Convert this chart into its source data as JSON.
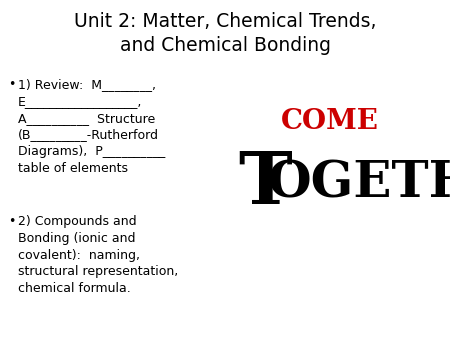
{
  "title_line1": "Unit 2: Matter, Chemical Trends,",
  "title_line2": "and Chemical Bonding",
  "bullet1_lines": [
    "1) Review:  M________,",
    "E__________________,",
    "A__________  Structure",
    "(B_________-Rutherford",
    "Diagrams),  P__________",
    "table of elements"
  ],
  "bullet2_lines": [
    "2) Compounds and",
    "Bonding (ionic and",
    "covalent):  naming,",
    "structural representation,",
    "chemical formula."
  ],
  "come_text": "COME",
  "together_T": "T",
  "together_rest": "OGETHER",
  "bg_color": "#ffffff",
  "text_color": "#000000",
  "come_color": "#cc0000",
  "title_fontsize": 13.5,
  "body_fontsize": 9.0,
  "come_fontsize": 20,
  "T_fontsize": 52,
  "ogether_fontsize": 36
}
